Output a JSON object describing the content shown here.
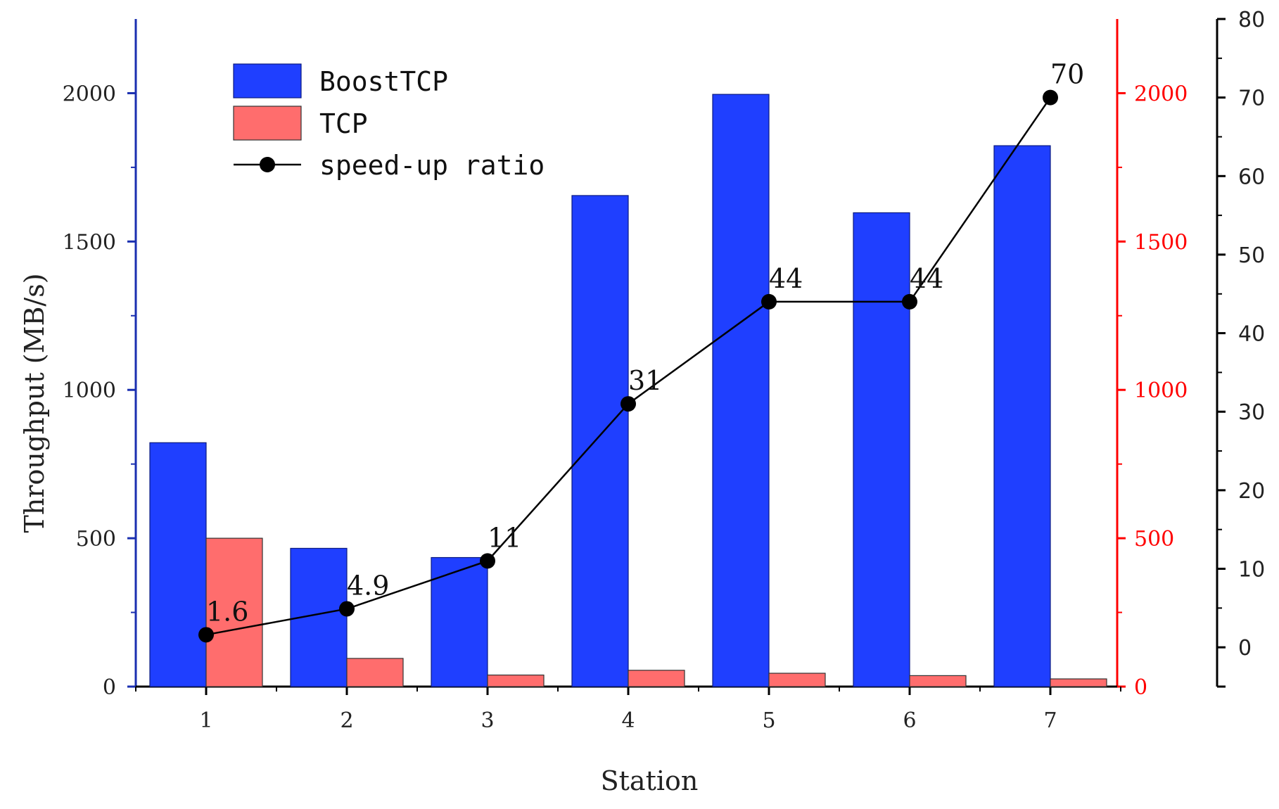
{
  "chart_data": {
    "type": "bar",
    "categories": [
      "1",
      "2",
      "3",
      "4",
      "5",
      "6",
      "7"
    ],
    "series": [
      {
        "name": "BoostTCP",
        "kind": "bar",
        "axis": "left",
        "color": "#1f3fff",
        "values": [
          822,
          466,
          435,
          1655,
          1996,
          1597,
          1823
        ]
      },
      {
        "name": "TCP",
        "kind": "bar",
        "axis": "right",
        "color": "#ff6d6d",
        "values": [
          500,
          95,
          39,
          55,
          45,
          37,
          26
        ]
      },
      {
        "name": "speed-up ratio",
        "kind": "line",
        "axis": "ratio",
        "color": "#000000",
        "values": [
          1.6,
          4.9,
          11,
          31,
          44,
          44,
          70
        ],
        "labels": [
          "1.6",
          "4.9",
          "11",
          "31",
          "44",
          "44",
          "70"
        ]
      }
    ],
    "xlabel": "Station",
    "ylabel": "Throughput (MB/s)",
    "ylim": [
      0,
      2250
    ],
    "y_ticks": [
      "0",
      "500",
      "1000",
      "1500",
      "2000"
    ],
    "y2lim": [
      0,
      2250
    ],
    "y2_ticks": [
      "0",
      "500",
      "1000",
      "1500",
      "2000"
    ],
    "y3lim": [
      -5,
      80
    ],
    "y3_ticks": [
      "0",
      "10",
      "20",
      "30",
      "40",
      "50",
      "60",
      "70",
      "80"
    ],
    "legend": {
      "position": "top-left",
      "entries": [
        "BoostTCP",
        "TCP",
        "speed-up ratio"
      ]
    },
    "axis_colors": {
      "left": "#1a2fb0",
      "right": "#ff0000",
      "ratio": "#000000"
    }
  }
}
